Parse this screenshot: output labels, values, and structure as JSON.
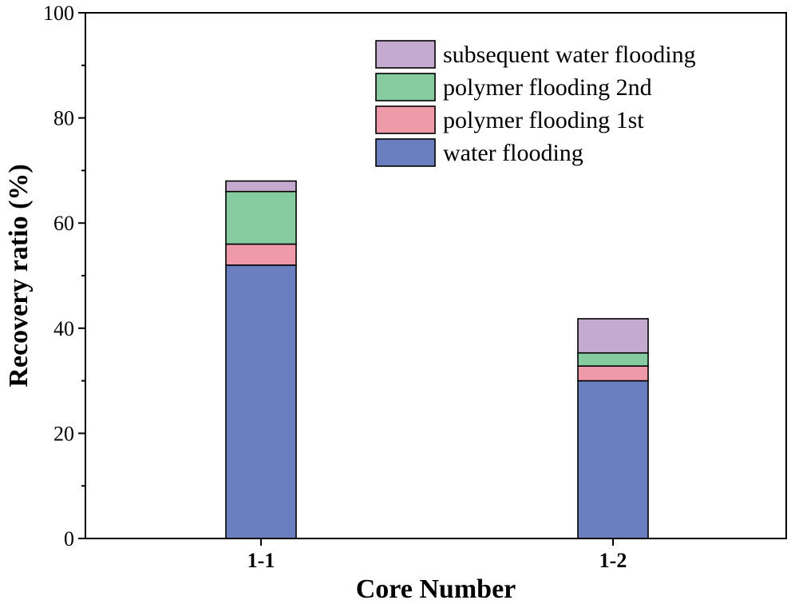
{
  "chart_data": {
    "type": "bar",
    "stacked": true,
    "title": "",
    "xlabel": "Core Number",
    "ylabel": "Recovery ratio (%)",
    "ylim": [
      0,
      100
    ],
    "yticks": [
      0,
      20,
      40,
      60,
      80,
      100
    ],
    "categories": [
      "1-1",
      "1-2"
    ],
    "series": [
      {
        "name": "water flooding",
        "color": "#6a7fc0",
        "values": [
          52.0,
          30.0
        ]
      },
      {
        "name": "polymer flooding 1st",
        "color": "#ef9aa8",
        "values": [
          4.0,
          2.8
        ]
      },
      {
        "name": "polymer flooding 2nd",
        "color": "#86cca0",
        "values": [
          10.0,
          2.5
        ]
      },
      {
        "name": "subsequent water flooding",
        "color": "#c4aacf",
        "values": [
          2.0,
          6.5
        ]
      }
    ],
    "legend_position": "top-right"
  }
}
